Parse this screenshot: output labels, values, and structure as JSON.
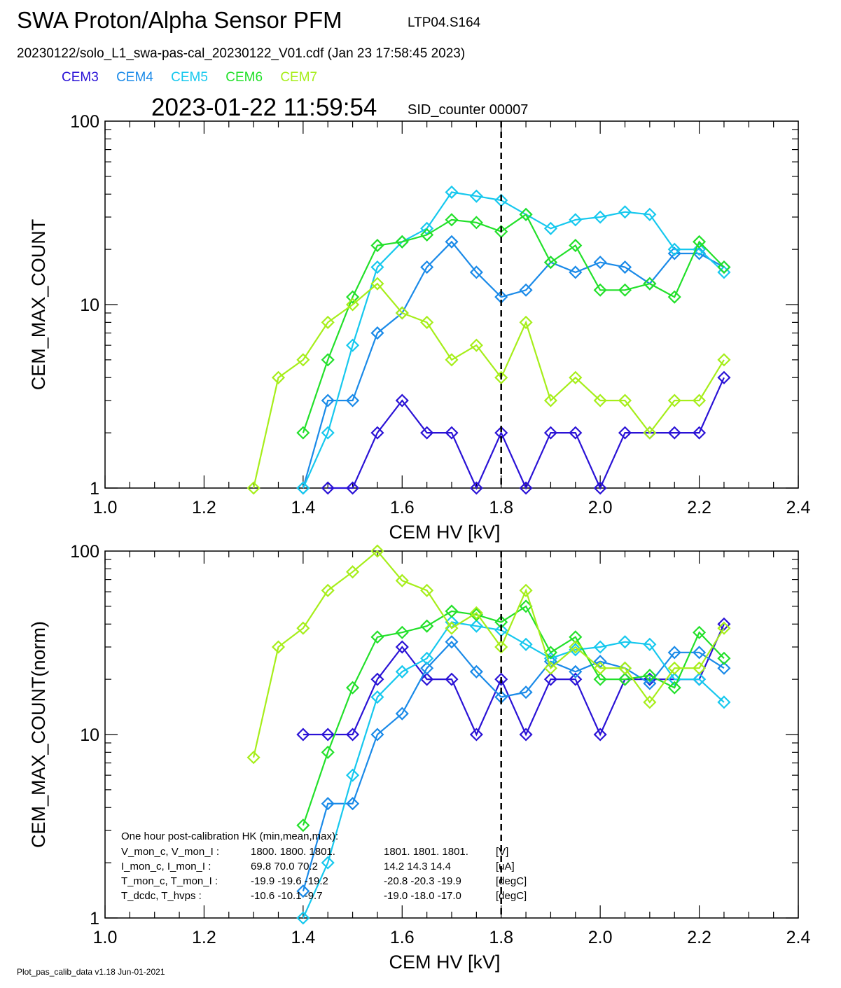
{
  "header": {
    "title": "SWA Proton/Alpha Sensor PFM",
    "tag": "LTP04.S164",
    "file": "20230122/solo_L1_swa-pas-cal_20230122_V01.cdf  (Jan 23 17:58:45 2023)",
    "timestamp": "2023-01-22 11:59:54",
    "sid": "SID_counter 00007"
  },
  "legend": [
    {
      "name": "CEM3",
      "color": "#2a12d6"
    },
    {
      "name": "CEM4",
      "color": "#1a8ae8"
    },
    {
      "name": "CEM5",
      "color": "#16c8ee"
    },
    {
      "name": "CEM6",
      "color": "#22e02a"
    },
    {
      "name": "CEM7",
      "color": "#a6ee1a"
    }
  ],
  "footer": "Plot_pas_calib_data v1.18 Jun-01-2021",
  "hk_box": {
    "title": "One hour post-calibration HK (min,mean,max):",
    "rows": [
      {
        "label": "V_mon_c, V_mon_I :",
        "c": "1800.  1800.  1801.",
        "i": "1801.  1801.  1801.",
        "unit": "[V]"
      },
      {
        "label": "I_mon_c,  I_mon_I :",
        "c": "69.8   70.0   70.2",
        "i": "14.2   14.3   14.4",
        "unit": "[uA]"
      },
      {
        "label": "T_mon_c, T_mon_I :",
        "c": "-19.9  -19.6  -19.2",
        "i": "-20.8  -20.3  -19.9",
        "unit": "[degC]"
      },
      {
        "label": "T_dcdc,    T_hvps :",
        "c": "-10.6  -10.1   -9.7",
        "i": "-19.0  -18.0  -17.0",
        "unit": "[degC]"
      }
    ]
  },
  "chart_data": [
    {
      "type": "line",
      "xlabel": "CEM HV [kV]",
      "ylabel": "CEM_MAX_COUNT",
      "xlim": [
        1.0,
        2.4
      ],
      "ylim": [
        1,
        100
      ],
      "yscale": "log",
      "xticks": [
        "1.0",
        "1.2",
        "1.4",
        "1.6",
        "1.8",
        "2.0",
        "2.2",
        "2.4"
      ],
      "yticks": [
        "1",
        "10",
        "100"
      ],
      "vline": 1.8,
      "series": [
        {
          "name": "CEM3",
          "color": "#2a12d6",
          "points": [
            [
              1.45,
              1
            ],
            [
              1.5,
              1
            ],
            [
              1.55,
              2
            ],
            [
              1.6,
              3
            ],
            [
              1.65,
              2
            ],
            [
              1.7,
              2
            ],
            [
              1.75,
              1
            ],
            [
              1.8,
              2
            ],
            [
              1.85,
              1
            ],
            [
              1.9,
              2
            ],
            [
              1.95,
              2
            ],
            [
              2.0,
              1
            ],
            [
              2.05,
              2
            ],
            [
              2.1,
              2
            ],
            [
              2.15,
              2
            ],
            [
              2.2,
              2
            ],
            [
              2.25,
              4
            ]
          ]
        },
        {
          "name": "CEM4",
          "color": "#1a8ae8",
          "points": [
            [
              1.4,
              1
            ],
            [
              1.45,
              3
            ],
            [
              1.5,
              3
            ],
            [
              1.55,
              7
            ],
            [
              1.6,
              9
            ],
            [
              1.65,
              16
            ],
            [
              1.7,
              22
            ],
            [
              1.75,
              15
            ],
            [
              1.8,
              11
            ],
            [
              1.85,
              12
            ],
            [
              1.9,
              17
            ],
            [
              1.95,
              15
            ],
            [
              2.0,
              17
            ],
            [
              2.05,
              16
            ],
            [
              2.1,
              13
            ],
            [
              2.15,
              19
            ],
            [
              2.2,
              19
            ],
            [
              2.25,
              16
            ]
          ]
        },
        {
          "name": "CEM5",
          "color": "#16c8ee",
          "points": [
            [
              1.4,
              1
            ],
            [
              1.45,
              2
            ],
            [
              1.5,
              6
            ],
            [
              1.55,
              16
            ],
            [
              1.6,
              22
            ],
            [
              1.65,
              26
            ],
            [
              1.7,
              41
            ],
            [
              1.75,
              39
            ],
            [
              1.8,
              37
            ],
            [
              1.85,
              31
            ],
            [
              1.9,
              26
            ],
            [
              1.95,
              29
            ],
            [
              2.0,
              30
            ],
            [
              2.05,
              32
            ],
            [
              2.1,
              31
            ],
            [
              2.15,
              20
            ],
            [
              2.2,
              20
            ],
            [
              2.25,
              15
            ]
          ]
        },
        {
          "name": "CEM6",
          "color": "#22e02a",
          "points": [
            [
              1.4,
              2
            ],
            [
              1.45,
              5
            ],
            [
              1.5,
              11
            ],
            [
              1.55,
              21
            ],
            [
              1.6,
              22
            ],
            [
              1.65,
              24
            ],
            [
              1.7,
              29
            ],
            [
              1.75,
              28
            ],
            [
              1.8,
              25
            ],
            [
              1.85,
              31
            ],
            [
              1.9,
              17
            ],
            [
              1.95,
              21
            ],
            [
              2.0,
              12
            ],
            [
              2.05,
              12
            ],
            [
              2.1,
              13
            ],
            [
              2.15,
              11
            ],
            [
              2.2,
              22
            ],
            [
              2.25,
              16
            ]
          ]
        },
        {
          "name": "CEM7",
          "color": "#a6ee1a",
          "points": [
            [
              1.3,
              1
            ],
            [
              1.35,
              4
            ],
            [
              1.4,
              5
            ],
            [
              1.45,
              8
            ],
            [
              1.5,
              10
            ],
            [
              1.55,
              13
            ],
            [
              1.6,
              9
            ],
            [
              1.65,
              8
            ],
            [
              1.7,
              5
            ],
            [
              1.75,
              6
            ],
            [
              1.8,
              4
            ],
            [
              1.85,
              8
            ],
            [
              1.9,
              3
            ],
            [
              1.95,
              4
            ],
            [
              2.0,
              3
            ],
            [
              2.05,
              3
            ],
            [
              2.1,
              2
            ],
            [
              2.15,
              3
            ],
            [
              2.2,
              3
            ],
            [
              2.25,
              5
            ]
          ]
        }
      ]
    },
    {
      "type": "line",
      "xlabel": "CEM HV [kV]",
      "ylabel": "CEM_MAX_COUNT(norm)",
      "xlim": [
        1.0,
        2.4
      ],
      "ylim": [
        1,
        100
      ],
      "yscale": "log",
      "xticks": [
        "1.0",
        "1.2",
        "1.4",
        "1.6",
        "1.8",
        "2.0",
        "2.2",
        "2.4"
      ],
      "yticks": [
        "1",
        "10",
        "100"
      ],
      "vline": 1.8,
      "series": [
        {
          "name": "CEM3",
          "color": "#2a12d6",
          "points": [
            [
              1.4,
              10
            ],
            [
              1.45,
              10
            ],
            [
              1.5,
              10
            ],
            [
              1.55,
              20
            ],
            [
              1.6,
              30
            ],
            [
              1.65,
              20
            ],
            [
              1.7,
              20
            ],
            [
              1.75,
              10
            ],
            [
              1.8,
              20
            ],
            [
              1.85,
              10
            ],
            [
              1.9,
              20
            ],
            [
              1.95,
              20
            ],
            [
              2.0,
              10
            ],
            [
              2.05,
              20
            ],
            [
              2.1,
              20
            ],
            [
              2.15,
              20
            ],
            [
              2.2,
              20
            ],
            [
              2.25,
              40
            ]
          ]
        },
        {
          "name": "CEM4",
          "color": "#1a8ae8",
          "points": [
            [
              1.4,
              1.4
            ],
            [
              1.45,
              4.2
            ],
            [
              1.5,
              4.2
            ],
            [
              1.55,
              10
            ],
            [
              1.6,
              13
            ],
            [
              1.65,
              23
            ],
            [
              1.7,
              32
            ],
            [
              1.75,
              22
            ],
            [
              1.8,
              16
            ],
            [
              1.85,
              17
            ],
            [
              1.9,
              25
            ],
            [
              1.95,
              22
            ],
            [
              2.0,
              25
            ],
            [
              2.05,
              23
            ],
            [
              2.1,
              19
            ],
            [
              2.15,
              28
            ],
            [
              2.2,
              28
            ],
            [
              2.25,
              23
            ]
          ]
        },
        {
          "name": "CEM5",
          "color": "#16c8ee",
          "points": [
            [
              1.4,
              1
            ],
            [
              1.45,
              2
            ],
            [
              1.5,
              6
            ],
            [
              1.55,
              16
            ],
            [
              1.6,
              22
            ],
            [
              1.65,
              26
            ],
            [
              1.7,
              41
            ],
            [
              1.75,
              39
            ],
            [
              1.8,
              37
            ],
            [
              1.85,
              31
            ],
            [
              1.9,
              26
            ],
            [
              1.95,
              29
            ],
            [
              2.0,
              30
            ],
            [
              2.05,
              32
            ],
            [
              2.1,
              31
            ],
            [
              2.15,
              20
            ],
            [
              2.2,
              20
            ],
            [
              2.25,
              15
            ]
          ]
        },
        {
          "name": "CEM6",
          "color": "#22e02a",
          "points": [
            [
              1.4,
              3.2
            ],
            [
              1.45,
              8
            ],
            [
              1.5,
              18
            ],
            [
              1.55,
              34
            ],
            [
              1.6,
              36
            ],
            [
              1.65,
              39
            ],
            [
              1.7,
              47
            ],
            [
              1.75,
              45
            ],
            [
              1.8,
              41
            ],
            [
              1.85,
              50
            ],
            [
              1.9,
              28
            ],
            [
              1.95,
              34
            ],
            [
              2.0,
              20
            ],
            [
              2.05,
              20
            ],
            [
              2.1,
              21
            ],
            [
              2.15,
              18
            ],
            [
              2.2,
              36
            ],
            [
              2.25,
              26
            ]
          ]
        },
        {
          "name": "CEM7",
          "color": "#a6ee1a",
          "points": [
            [
              1.3,
              7.5
            ],
            [
              1.35,
              30
            ],
            [
              1.4,
              38
            ],
            [
              1.45,
              61
            ],
            [
              1.5,
              77
            ],
            [
              1.55,
              100
            ],
            [
              1.6,
              69
            ],
            [
              1.65,
              61
            ],
            [
              1.7,
              38
            ],
            [
              1.75,
              46
            ],
            [
              1.8,
              30
            ],
            [
              1.85,
              61
            ],
            [
              1.9,
              23
            ],
            [
              1.95,
              30
            ],
            [
              2.0,
              23
            ],
            [
              2.05,
              23
            ],
            [
              2.1,
              15
            ],
            [
              2.15,
              23
            ],
            [
              2.2,
              23
            ],
            [
              2.25,
              38
            ]
          ]
        }
      ]
    }
  ]
}
